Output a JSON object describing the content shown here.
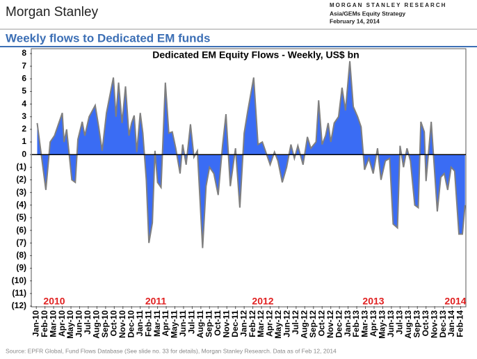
{
  "header": {
    "brand": "Morgan Stanley",
    "research": "MORGAN STANLEY RESEARCH",
    "team": "Asia/GEMs Equity Strategy",
    "date": "February 14, 2014"
  },
  "heading": "Weekly flows to Dedicated EM funds",
  "source": "Source: EPFR Global, Fund Flows Database (See slide no. 33 for details), Morgan Stanley Research. Data as of Feb 12, 2014",
  "chart_data": {
    "type": "area",
    "title": "Dedicated EM Equity Flows - Weekly, US$ bn",
    "color": "#3a6cf4",
    "line_color": "#7f7f7f",
    "annotations": [
      "2010",
      "2011",
      "2012",
      "2013",
      "2014"
    ],
    "x": [
      0.1,
      1.1,
      1.6,
      2.1,
      3.0,
      3.2,
      3.5,
      4.1,
      4.5,
      4.8,
      5.3,
      5.6,
      6.1,
      6.8,
      7.2,
      7.6,
      8.1,
      8.9,
      9.2,
      9.5,
      9.9,
      10.3,
      10.7,
      11.0,
      11.3,
      11.6,
      12.0,
      12.3,
      12.7,
      13.0,
      13.4,
      13.7,
      14.0,
      14.4,
      14.9,
      15.3,
      15.7,
      16.1,
      16.6,
      16.9,
      17.3,
      17.8,
      18.2,
      18.6,
      19.2,
      19.6,
      20.0,
      20.5,
      21.0,
      21.5,
      21.9,
      22.4,
      23.0,
      23.5,
      24.0,
      24.4,
      25.1,
      25.6,
      26.1,
      26.5,
      27.0,
      27.5,
      27.9,
      28.4,
      28.9,
      29.4,
      29.8,
      30.2,
      30.8,
      31.3,
      31.7,
      32.3,
      32.6,
      33.0,
      33.4,
      33.7,
      34.0,
      34.4,
      34.9,
      35.3,
      35.7,
      36.2,
      36.6,
      37.1,
      37.5,
      37.9,
      38.4,
      38.9,
      39.4,
      39.8,
      40.3,
      40.8,
      41.2,
      41.7,
      42.0,
      42.4,
      42.8,
      43.2,
      43.7,
      44.1,
      44.4,
      44.8,
      45.0,
      45.6,
      46.3,
      46.7,
      47.1,
      47.5,
      47.9,
      48.3,
      48.8,
      49.2,
      49.5
    ],
    "values": [
      2.5,
      -2.8,
      1.0,
      1.5,
      3.3,
      1.0,
      2.0,
      -2.0,
      -2.2,
      1.2,
      2.6,
      1.5,
      3.0,
      3.9,
      2.2,
      0.3,
      3.3,
      6.1,
      3.0,
      5.7,
      2.5,
      5.4,
      1.5,
      2.5,
      3.1,
      0.2,
      3.3,
      1.7,
      -2.0,
      -7.0,
      -5.4,
      0.3,
      -2.2,
      -2.6,
      5.7,
      1.7,
      1.8,
      0.5,
      -1.5,
      0.8,
      -0.8,
      2.4,
      -0.2,
      0.3,
      -7.4,
      -2.5,
      -1.0,
      -1.5,
      -3.2,
      0.7,
      3.2,
      -2.5,
      0.5,
      -4.2,
      1.7,
      3.4,
      6.1,
      0.8,
      1.0,
      0.2,
      -0.8,
      0.2,
      -0.5,
      -2.2,
      -1.0,
      0.8,
      -0.3,
      0.7,
      -0.8,
      1.4,
      0.5,
      1.0,
      4.3,
      0.8,
      1.5,
      2.5,
      1.0,
      2.5,
      3.0,
      5.3,
      3.5,
      7.4,
      3.8,
      3.0,
      2.2,
      -1.2,
      -0.3,
      -1.5,
      0.5,
      -2.0,
      -0.5,
      -0.3,
      -5.5,
      -5.8,
      0.7,
      -1.0,
      0.5,
      -0.5,
      -4.0,
      -4.2,
      2.6,
      1.8,
      -2.1,
      2.6,
      -4.5,
      -1.8,
      -1.5,
      -2.8,
      -1.0,
      -1.3,
      -6.3,
      -6.3,
      -4.0
    ],
    "xlim": [
      -0.5,
      49.6
    ],
    "xticks": [
      {
        "value": 0,
        "label": "Jan-10"
      },
      {
        "value": 1,
        "label": "Feb-10"
      },
      {
        "value": 2,
        "label": "Mar-10"
      },
      {
        "value": 3,
        "label": "Apr-10"
      },
      {
        "value": 4,
        "label": "May-10"
      },
      {
        "value": 5,
        "label": "Jun-10"
      },
      {
        "value": 6,
        "label": "Jul-10"
      },
      {
        "value": 7,
        "label": "Aug-10"
      },
      {
        "value": 8,
        "label": "Sep-10"
      },
      {
        "value": 9,
        "label": "Oct-10"
      },
      {
        "value": 10,
        "label": "Nov-10"
      },
      {
        "value": 11,
        "label": "Dec-10"
      },
      {
        "value": 12,
        "label": "Jan-11"
      },
      {
        "value": 13,
        "label": "Feb-11"
      },
      {
        "value": 14,
        "label": "Mar-11"
      },
      {
        "value": 15,
        "label": "Apr-11"
      },
      {
        "value": 16,
        "label": "May-11"
      },
      {
        "value": 17,
        "label": "Jun-11"
      },
      {
        "value": 18,
        "label": "Jul-11"
      },
      {
        "value": 19,
        "label": "Aug-11"
      },
      {
        "value": 20,
        "label": "Sep-11"
      },
      {
        "value": 21,
        "label": "Oct-11"
      },
      {
        "value": 22,
        "label": "Nov-11"
      },
      {
        "value": 23,
        "label": "Dec-11"
      },
      {
        "value": 24,
        "label": "Jan-12"
      },
      {
        "value": 25,
        "label": "Feb-12"
      },
      {
        "value": 26,
        "label": "Mar-12"
      },
      {
        "value": 27,
        "label": "Apr-12"
      },
      {
        "value": 28,
        "label": "May-12"
      },
      {
        "value": 29,
        "label": "Jun-12"
      },
      {
        "value": 30,
        "label": "Jul-12"
      },
      {
        "value": 31,
        "label": "Aug-12"
      },
      {
        "value": 32,
        "label": "Sep-12"
      },
      {
        "value": 33,
        "label": "Oct-12"
      },
      {
        "value": 34,
        "label": "Nov-12"
      },
      {
        "value": 35,
        "label": "Dec-12"
      },
      {
        "value": 36,
        "label": "Jan-13"
      },
      {
        "value": 37,
        "label": "Feb-13"
      },
      {
        "value": 38,
        "label": "Mar-13"
      },
      {
        "value": 39,
        "label": "Apr-13"
      },
      {
        "value": 40,
        "label": "May-13"
      },
      {
        "value": 41,
        "label": "Jun-13"
      },
      {
        "value": 42,
        "label": "Jul-13"
      },
      {
        "value": 43,
        "label": "Aug-13"
      },
      {
        "value": 44,
        "label": "Sep-13"
      },
      {
        "value": 45,
        "label": "Oct-13"
      },
      {
        "value": 46,
        "label": "Nov-13"
      },
      {
        "value": 47,
        "label": "Dec-13"
      },
      {
        "value": 48,
        "label": "Jan-14"
      },
      {
        "value": 49,
        "label": "Feb-14"
      }
    ],
    "ylim": [
      -12,
      8
    ],
    "yticks": [
      8,
      7,
      6,
      5,
      4,
      3,
      2,
      1,
      0,
      {
        "value": -1,
        "label": "(1)"
      },
      {
        "value": -2,
        "label": "(2)"
      },
      {
        "value": -3,
        "label": "(3)"
      },
      {
        "value": -4,
        "label": "(4)"
      },
      {
        "value": -5,
        "label": "(5)"
      },
      {
        "value": -6,
        "label": "(6)"
      },
      {
        "value": -7,
        "label": "(7)"
      },
      {
        "value": -8,
        "label": "(8)"
      },
      {
        "value": -9,
        "label": "(9)"
      },
      {
        "value": -10,
        "label": "(10)"
      },
      {
        "value": -11,
        "label": "(11)"
      },
      {
        "value": -12,
        "label": "(12)"
      }
    ]
  }
}
